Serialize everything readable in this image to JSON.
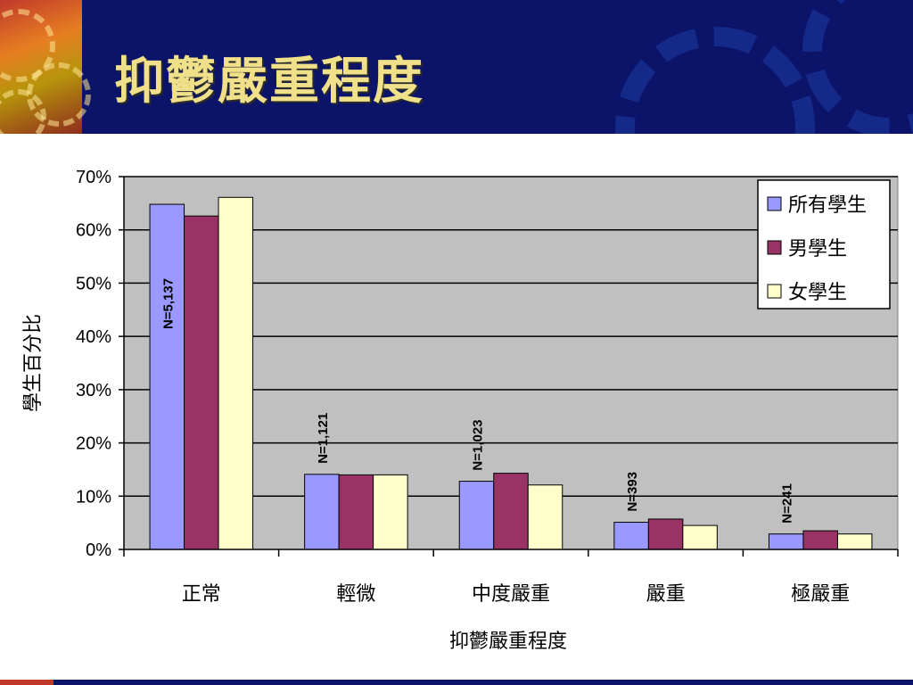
{
  "slide": {
    "title": "抑鬱嚴重程度"
  },
  "chart_data": {
    "type": "bar",
    "categories": [
      "正常",
      "輕微",
      "中度嚴重",
      "嚴重",
      "極嚴重"
    ],
    "series": [
      {
        "name": "所有學生",
        "values": [
          64.8,
          14.1,
          12.8,
          5.1,
          2.9
        ],
        "color": "#9999ff"
      },
      {
        "name": "男學生",
        "values": [
          62.6,
          14.0,
          14.3,
          5.7,
          3.5
        ],
        "color": "#993366"
      },
      {
        "name": "女學生",
        "values": [
          66.1,
          14.0,
          12.1,
          4.5,
          2.9
        ],
        "color": "#ffffcc"
      }
    ],
    "annotations": [
      "N=5,137",
      "N=1,121",
      "N=1,023",
      "N=393",
      "N=241"
    ],
    "xlabel": "抑鬱嚴重程度",
    "ylabel": "學生百分比",
    "ylim": [
      0,
      70
    ],
    "yticks": [
      0,
      10,
      20,
      30,
      40,
      50,
      60,
      70
    ],
    "yticks_labels": [
      "0%",
      "10%",
      "20%",
      "30%",
      "40%",
      "50%",
      "60%",
      "70%"
    ],
    "grid": true,
    "plot_background": "#c0c0c0",
    "legend_position": "top-right"
  }
}
